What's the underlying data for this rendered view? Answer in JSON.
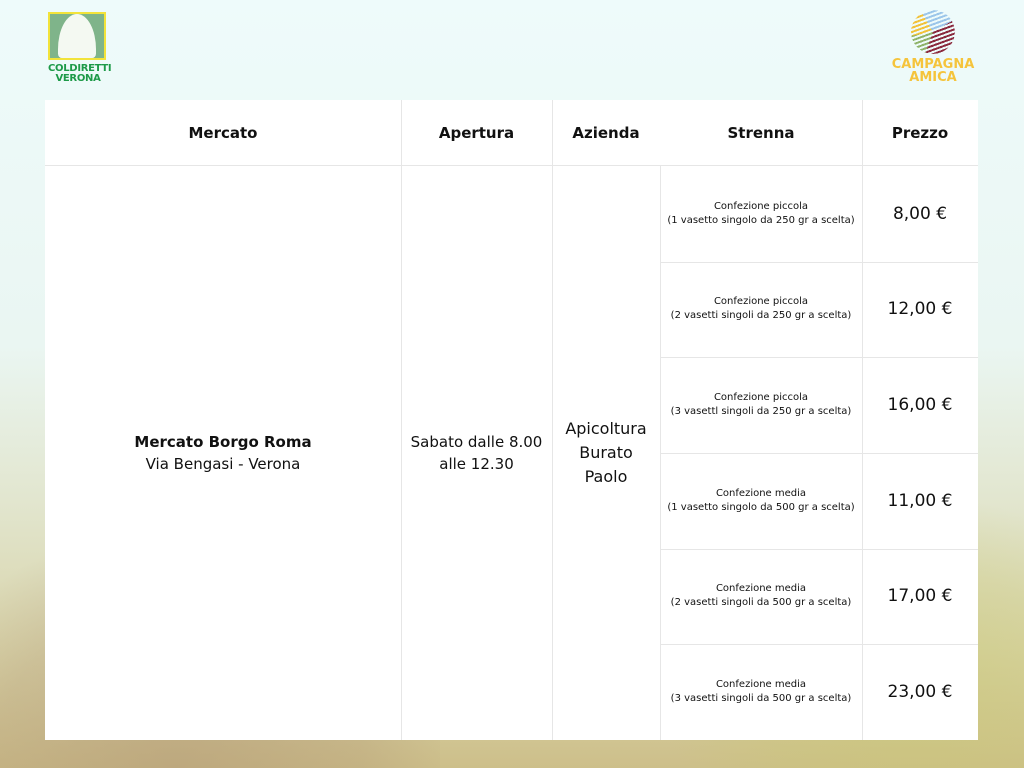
{
  "logos": {
    "left": {
      "text_line1": "COLDIRETTI",
      "text_line2": "VERONA"
    },
    "right": {
      "text_line1": "CAMPAGNA",
      "text_line2": "AMICA"
    }
  },
  "table": {
    "headers": [
      "Mercato",
      "Apertura",
      "Azienda",
      "Strenna",
      "Prezzo"
    ],
    "mercato": {
      "name": "Mercato Borgo Roma",
      "address": "Via Bengasi - Verona"
    },
    "apertura": {
      "line1": "Sabato dalle 8.00",
      "line2": "alle 12.30"
    },
    "azienda": {
      "line1": "Apicoltura",
      "line2": "Burato",
      "line3": "Paolo"
    },
    "rows": [
      {
        "title": "Confezione piccola",
        "detail": "(1 vasetto singolo da 250 gr a scelta)",
        "price": "8,00 €"
      },
      {
        "title": "Confezione piccola",
        "detail": "(2 vasetti singoli da 250 gr a scelta)",
        "price": "12,00 €"
      },
      {
        "title": "Confezione piccola",
        "detail": "(3 vasettl singoli da 250 gr a scelta)",
        "price": "16,00 €"
      },
      {
        "title": "Confezione media",
        "detail": "(1 vasetto singolo da 500 gr a scelta)",
        "price": "11,00 €"
      },
      {
        "title": "Confezione media",
        "detail": "(2 vasetti singoli da 500 gr a scelta)",
        "price": "17,00 €"
      },
      {
        "title": "Confezione media",
        "detail": "(3 vasetti singoli da 500 gr a scelta)",
        "price": "23,00 €"
      }
    ]
  }
}
